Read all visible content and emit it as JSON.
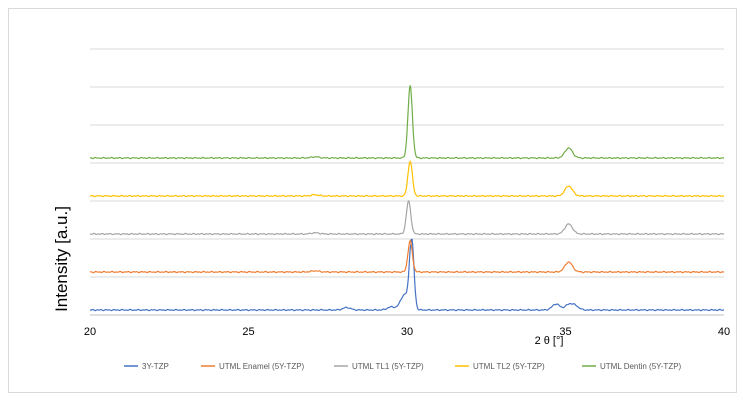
{
  "chart_data": {
    "type": "line",
    "title": "",
    "xlabel": "2 θ  [°]",
    "ylabel": "Intensity [a.u.]",
    "xlim": [
      20,
      40
    ],
    "xticks": [
      20,
      25,
      30,
      35,
      40
    ],
    "x_tick_labels": [
      "20",
      "25",
      "30",
      "35",
      "40"
    ],
    "y_gridlines": 7,
    "y_ticks_visible": false,
    "grid": "horizontal",
    "legend_position": "bottom",
    "series": [
      {
        "name": "3Y-TZP",
        "color": "#4472C4",
        "baseline": 0,
        "peaks": [
          [
            28.1,
            2.5
          ],
          [
            29.5,
            3
          ],
          [
            29.9,
            10
          ],
          [
            30.15,
            70
          ],
          [
            34.7,
            6
          ],
          [
            35.1,
            5
          ],
          [
            35.3,
            4
          ]
        ]
      },
      {
        "name": "UTML Enamel (5Y-TZP)",
        "color": "#ED7D31",
        "baseline": 38,
        "peaks": [
          [
            27.1,
            1.2
          ],
          [
            30.1,
            31
          ],
          [
            35.1,
            10
          ]
        ]
      },
      {
        "name": "UTML TL1 (5Y-TZP)",
        "color": "#A5A5A5",
        "baseline": 76,
        "peaks": [
          [
            27.1,
            1.2
          ],
          [
            30.05,
            33
          ],
          [
            35.1,
            10
          ]
        ]
      },
      {
        "name": "UTML TL2 (5Y-TZP)",
        "color": "#FFC000",
        "baseline": 114,
        "peaks": [
          [
            27.1,
            1.2
          ],
          [
            30.1,
            35
          ],
          [
            35.1,
            10
          ]
        ]
      },
      {
        "name": "UTML Dentin (5Y-TZP)",
        "color": "#70AD47",
        "baseline": 152,
        "peaks": [
          [
            27.1,
            1.2
          ],
          [
            30.1,
            72
          ],
          [
            35.1,
            10
          ]
        ]
      }
    ]
  }
}
